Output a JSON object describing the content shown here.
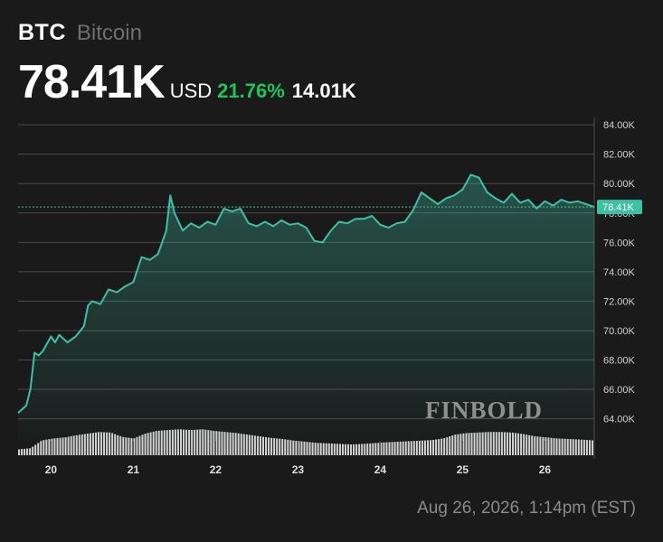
{
  "header": {
    "ticker": "BTC",
    "name": "Bitcoin",
    "price": "78.41K",
    "currency": "USD",
    "change_pct": "21.76%",
    "change_abs": "14.01K"
  },
  "footer": {
    "timestamp": "Aug 26, 2026, 1:14pm (EST)"
  },
  "watermark": "FINBOLD",
  "colors": {
    "background": "#1a1a1a",
    "line": "#3fbfa4",
    "positive": "#20c45a",
    "grid": "#4a4a4a",
    "volume": "#e6e6e6",
    "label_bg": "#3fbfa4"
  },
  "chart_data": {
    "type": "area",
    "x_ticks": [
      "20",
      "21",
      "22",
      "23",
      "24",
      "25",
      "26"
    ],
    "y_ticks": [
      "64.00K",
      "66.00K",
      "68.00K",
      "70.00K",
      "72.00K",
      "74.00K",
      "76.00K",
      "78.00K",
      "80.00K",
      "82.00K",
      "84.00K"
    ],
    "ylim": [
      62.5,
      84.5
    ],
    "xlim": [
      19.6,
      26.6
    ],
    "grid": true,
    "last_value_label": "78.41K",
    "last_value": 78.41,
    "series": [
      {
        "x": [
          19.6,
          19.7,
          19.75,
          19.8,
          19.85,
          19.9,
          20.0,
          20.05,
          20.1,
          20.2,
          20.3,
          20.4,
          20.45,
          20.5,
          20.6,
          20.7,
          20.8,
          20.9,
          21.0,
          21.1,
          21.2,
          21.3,
          21.4,
          21.45,
          21.5,
          21.6,
          21.7,
          21.8,
          21.9,
          22.0,
          22.1,
          22.2,
          22.3,
          22.4,
          22.5,
          22.6,
          22.7,
          22.8,
          22.9,
          23.0,
          23.1,
          23.2,
          23.3,
          23.4,
          23.5,
          23.6,
          23.7,
          23.8,
          23.9,
          24.0,
          24.1,
          24.2,
          24.3,
          24.4,
          24.5,
          24.6,
          24.7,
          24.8,
          24.9,
          25.0,
          25.1,
          25.2,
          25.3,
          25.4,
          25.5,
          25.6,
          25.7,
          25.8,
          25.9,
          26.0,
          26.1,
          26.2,
          26.3,
          26.4,
          26.5,
          26.6
        ],
        "y": [
          64.4,
          64.9,
          66.0,
          68.5,
          68.3,
          68.6,
          69.6,
          69.2,
          69.7,
          69.2,
          69.6,
          70.3,
          71.7,
          72.0,
          71.8,
          72.8,
          72.6,
          73.0,
          73.3,
          75.0,
          74.8,
          75.2,
          76.8,
          79.2,
          78.0,
          76.8,
          77.3,
          77.0,
          77.4,
          77.2,
          78.3,
          78.1,
          78.3,
          77.3,
          77.1,
          77.4,
          77.1,
          77.5,
          77.2,
          77.3,
          77.0,
          76.1,
          76.0,
          76.8,
          77.4,
          77.3,
          77.6,
          77.6,
          77.8,
          77.2,
          77.0,
          77.3,
          77.4,
          78.2,
          79.4,
          79.0,
          78.6,
          79.0,
          79.2,
          79.6,
          80.6,
          80.4,
          79.4,
          79.0,
          78.7,
          79.3,
          78.7,
          78.9,
          78.3,
          78.8,
          78.5,
          78.9,
          78.7,
          78.8,
          78.6,
          78.41
        ]
      }
    ],
    "volume": [
      0.22,
      0.26,
      0.55,
      0.62,
      0.66,
      0.74,
      0.8,
      0.86,
      0.84,
      0.68,
      0.62,
      0.8,
      0.9,
      0.93,
      0.96,
      0.93,
      0.96,
      0.9,
      0.86,
      0.82,
      0.76,
      0.7,
      0.64,
      0.6,
      0.54,
      0.5,
      0.46,
      0.44,
      0.42,
      0.4,
      0.42,
      0.45,
      0.48,
      0.5,
      0.52,
      0.54,
      0.56,
      0.62,
      0.76,
      0.82,
      0.84,
      0.86,
      0.86,
      0.84,
      0.78,
      0.7,
      0.66,
      0.62,
      0.6,
      0.58,
      0.55
    ]
  }
}
